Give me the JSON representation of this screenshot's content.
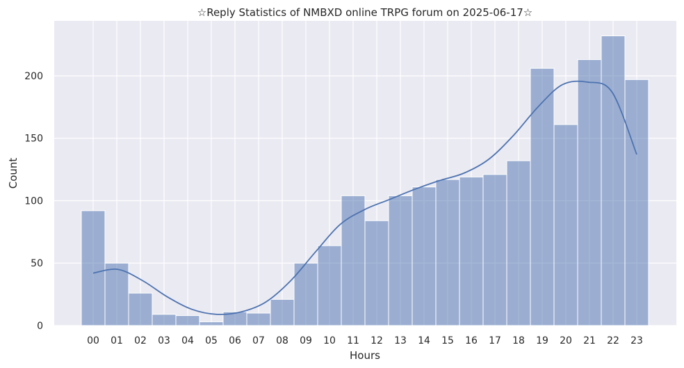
{
  "chart_data": {
    "type": "bar",
    "title": "☆Reply Statistics of NMBXD online TRPG forum on 2025-06-17☆",
    "xlabel": "Hours",
    "ylabel": "Count",
    "categories": [
      "00",
      "01",
      "02",
      "03",
      "04",
      "05",
      "06",
      "07",
      "08",
      "09",
      "10",
      "11",
      "12",
      "13",
      "14",
      "15",
      "16",
      "17",
      "18",
      "19",
      "20",
      "21",
      "22",
      "23"
    ],
    "values": [
      92,
      50,
      26,
      9,
      8,
      3,
      11,
      10,
      21,
      50,
      64,
      104,
      84,
      104,
      111,
      117,
      119,
      121,
      132,
      206,
      161,
      213,
      232,
      197
    ],
    "kde": [
      42,
      45,
      36,
      23,
      13,
      9,
      11,
      19,
      36,
      59,
      81,
      93,
      101,
      109,
      116,
      122,
      133,
      152,
      175,
      193,
      195,
      187,
      137
    ],
    "kde_x_start": 0,
    "kde_x_end": 23,
    "yticks": [
      0,
      50,
      100,
      150,
      200
    ],
    "ylim": [
      0,
      244
    ],
    "grid": true,
    "bar_color": "#4c72b0",
    "line_color": "#4c72b0",
    "background_color": "#eaeaf2"
  }
}
